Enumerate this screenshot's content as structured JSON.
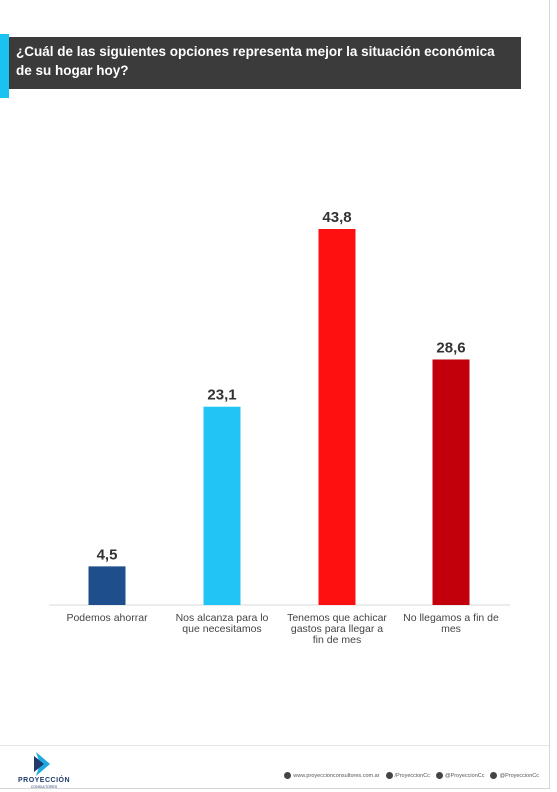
{
  "title": "¿Cuál de las siguientes opciones representa mejor la situación económica de su hogar hoy?",
  "colors": {
    "accent": "#19c2f0",
    "title_bg": "#3b3b3b",
    "label": "#444444",
    "value": "#333333"
  },
  "chart_data": {
    "type": "bar",
    "categories": [
      [
        "Podemos ahorrar"
      ],
      [
        "Nos alcanza para lo",
        "que necesitamos"
      ],
      [
        "Tenemos que achicar",
        "gastos para llegar a",
        "fin de mes"
      ],
      [
        "No llegamos a fin de",
        "mes"
      ]
    ],
    "values": [
      4.5,
      23.1,
      43.8,
      28.6
    ],
    "value_labels": [
      "4,5",
      "23,1",
      "43,8",
      "28,6"
    ],
    "colors": [
      "#1f4e8c",
      "#20c5f5",
      "#ff1010",
      "#c2000b"
    ],
    "ylim": [
      0,
      43.8
    ],
    "grid": false,
    "legend": "none"
  },
  "footer": {
    "logo_name": "PROYECCIÓN",
    "logo_sub": "CONSULTORES",
    "links": [
      {
        "icon": "globe-icon",
        "text": "www.proyeccionconsultores.com.ar"
      },
      {
        "icon": "facebook-icon",
        "text": "/ProyeccionCc"
      },
      {
        "icon": "twitter-icon",
        "text": "@ProyeccionCc"
      },
      {
        "icon": "instagram-icon",
        "text": "@ProyeccionCc"
      }
    ]
  }
}
